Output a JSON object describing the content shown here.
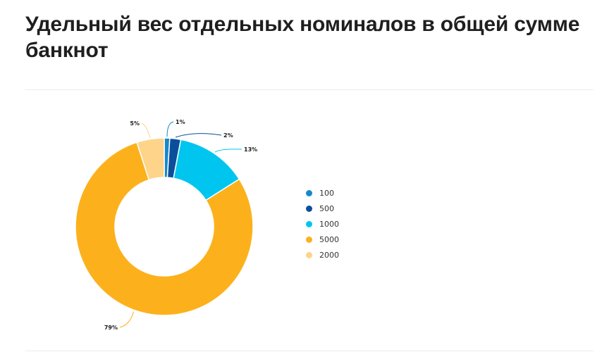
{
  "page": {
    "title": "Удельный вес отдельных номиналов в общей сумме банкнот"
  },
  "chart_data": {
    "type": "pie",
    "donut": true,
    "title": "Удельный вес отдельных номиналов в общей сумме банкнот",
    "legend_position": "right",
    "slices": [
      {
        "label": "100",
        "value": 1,
        "display": "1%",
        "color": "#1689c9"
      },
      {
        "label": "500",
        "value": 2,
        "display": "2%",
        "color": "#0b4f9c"
      },
      {
        "label": "1000",
        "value": 13,
        "display": "13%",
        "color": "#00c6ef"
      },
      {
        "label": "5000",
        "value": 79,
        "display": "79%",
        "color": "#fcb11c"
      },
      {
        "label": "2000",
        "value": 5,
        "display": "5%",
        "color": "#fdd48a"
      }
    ]
  }
}
